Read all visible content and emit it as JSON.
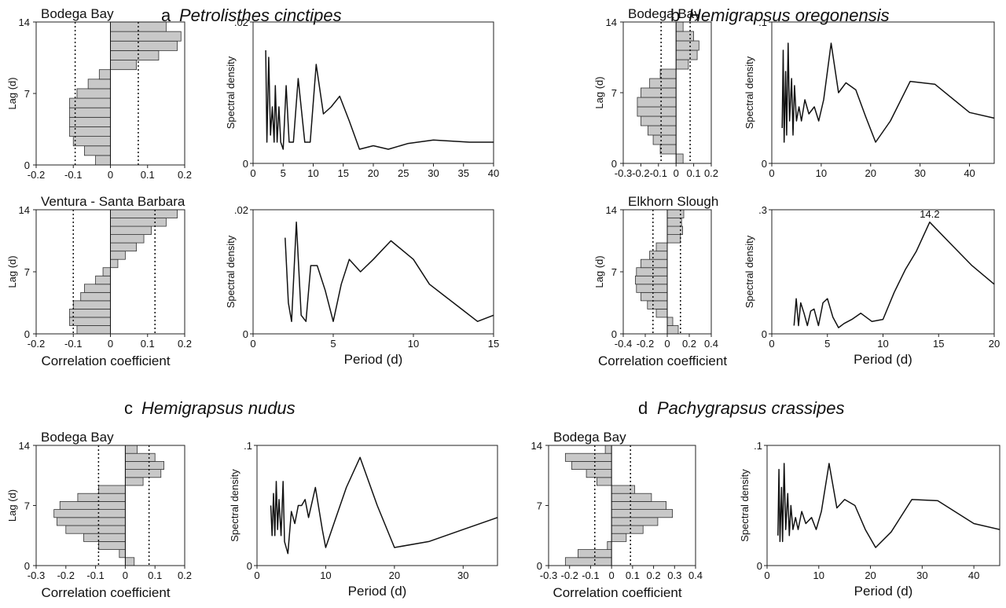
{
  "panels": [
    {
      "letter": "a",
      "species": "Petrolisthes cinctipes"
    },
    {
      "letter": "b",
      "species": "Hemigrapsus oregonensis"
    },
    {
      "letter": "c",
      "species": "Hemigrapsus nudus"
    },
    {
      "letter": "d",
      "species": "Pachygrapsus crassipes"
    }
  ],
  "chart_data": [
    {
      "type": "bar",
      "id": "a1-ccf",
      "title": "Bodega Bay",
      "orientation": "horizontal",
      "xlim": [
        -0.2,
        0.2
      ],
      "xticks": [
        -0.2,
        -0.1,
        0,
        0.1,
        0.2
      ],
      "ylim": [
        0,
        14
      ],
      "yticks": [
        0,
        7,
        14
      ],
      "ylabel": "Lag (d)",
      "xlabel": "",
      "significance": [
        -0.095,
        0.075
      ],
      "lags": [
        0,
        1,
        2,
        3,
        4,
        5,
        6,
        7,
        8,
        9,
        10,
        11,
        12,
        13,
        14
      ],
      "values": [
        -0.04,
        -0.07,
        -0.1,
        -0.11,
        -0.11,
        -0.11,
        -0.11,
        -0.09,
        -0.06,
        -0.03,
        0.07,
        0.13,
        0.18,
        0.19,
        0.15
      ]
    },
    {
      "type": "line",
      "id": "a1-psd",
      "xlim": [
        0,
        40
      ],
      "ylim": [
        0,
        0.02
      ],
      "xticks": [
        0,
        5,
        10,
        15,
        20,
        25,
        30,
        35,
        40
      ],
      "yticks": [
        0,
        0.02
      ],
      "xlabel": "",
      "ylabel": "Spectral density",
      "x": [
        2.1,
        2.3,
        2.6,
        2.9,
        3.2,
        3.5,
        3.7,
        4,
        4.3,
        4.6,
        5,
        5.5,
        6,
        6.7,
        7.5,
        8.6,
        9.5,
        10.5,
        11.7,
        13,
        14.4,
        16,
        17.7,
        20,
        22.5,
        25.7,
        30,
        36,
        40
      ],
      "values": [
        0.016,
        0.003,
        0.015,
        0.004,
        0.008,
        0.003,
        0.011,
        0.003,
        0.008,
        0.003,
        0.002,
        0.011,
        0.003,
        0.003,
        0.012,
        0.003,
        0.003,
        0.014,
        0.007,
        0.008,
        0.0095,
        0.006,
        0.002,
        0.0025,
        0.002,
        0.0028,
        0.0033,
        0.003,
        0.003
      ]
    },
    {
      "type": "bar",
      "id": "a2-ccf",
      "title": "Ventura - Santa Barbara",
      "orientation": "horizontal",
      "xlim": [
        -0.2,
        0.2
      ],
      "xticks": [
        -0.2,
        -0.1,
        0,
        0.1,
        0.2
      ],
      "ylim": [
        0,
        14
      ],
      "yticks": [
        0,
        7,
        14
      ],
      "ylabel": "Lag (d)",
      "xlabel": "Correlation coefficient",
      "significance": [
        -0.1,
        0.12
      ],
      "lags": [
        0,
        1,
        2,
        3,
        4,
        5,
        6,
        7,
        8,
        9,
        10,
        11,
        12,
        13,
        14
      ],
      "values": [
        -0.09,
        -0.11,
        -0.11,
        -0.1,
        -0.08,
        -0.07,
        -0.04,
        -0.02,
        0.02,
        0.04,
        0.07,
        0.09,
        0.11,
        0.15,
        0.18
      ]
    },
    {
      "type": "line",
      "id": "a2-psd",
      "xlim": [
        0,
        15
      ],
      "ylim": [
        0,
        0.02
      ],
      "xticks": [
        0,
        5,
        10,
        15
      ],
      "yticks": [
        0,
        0.02
      ],
      "xlabel": "Period (d)",
      "ylabel": "Spectral density",
      "x": [
        2,
        2.2,
        2.4,
        2.7,
        3,
        3.3,
        3.6,
        4,
        4.5,
        5,
        5.5,
        6,
        6.7,
        7.5,
        8.6,
        10,
        11,
        12,
        13,
        14,
        15
      ],
      "values": [
        0.0155,
        0.005,
        0.002,
        0.018,
        0.003,
        0.002,
        0.011,
        0.011,
        0.007,
        0.002,
        0.008,
        0.012,
        0.01,
        0.012,
        0.015,
        0.012,
        0.008,
        0.006,
        0.004,
        0.002,
        0.003
      ]
    },
    {
      "type": "bar",
      "id": "b1-ccf",
      "title": "Bodega Bay",
      "orientation": "horizontal",
      "xlim": [
        -0.3,
        0.2
      ],
      "xticks": [
        -0.3,
        -0.2,
        -0.1,
        0,
        0.1,
        0.2
      ],
      "ylim": [
        0,
        14
      ],
      "yticks": [
        0,
        7,
        14
      ],
      "ylabel": "Lag (d)",
      "xlabel": "",
      "significance": [
        -0.085,
        0.08
      ],
      "lags": [
        0,
        1,
        2,
        3,
        4,
        5,
        6,
        7,
        8,
        9,
        10,
        11,
        12,
        13,
        14
      ],
      "values": [
        0.04,
        -0.09,
        -0.13,
        -0.16,
        -0.2,
        -0.22,
        -0.22,
        -0.2,
        -0.15,
        -0.09,
        0.07,
        0.12,
        0.13,
        0.1,
        0.04
      ]
    },
    {
      "type": "line",
      "id": "b1-psd",
      "xlim": [
        0,
        45
      ],
      "ylim": [
        0,
        0.1
      ],
      "xticks": [
        0,
        10,
        20,
        30,
        40
      ],
      "yticks": [
        0,
        0.1
      ],
      "xlabel": "",
      "ylabel": "Spectral density",
      "x": [
        2.1,
        2.3,
        2.5,
        2.8,
        3,
        3.3,
        3.6,
        4,
        4.3,
        4.6,
        5,
        5.5,
        6,
        6.7,
        7.5,
        8.6,
        9.5,
        10.5,
        12,
        13.5,
        15,
        17,
        19,
        21,
        24,
        28,
        33,
        40,
        45
      ],
      "values": [
        0.025,
        0.08,
        0.015,
        0.065,
        0.02,
        0.085,
        0.03,
        0.06,
        0.02,
        0.055,
        0.03,
        0.04,
        0.03,
        0.045,
        0.035,
        0.04,
        0.03,
        0.045,
        0.085,
        0.05,
        0.057,
        0.052,
        0.033,
        0.015,
        0.03,
        0.058,
        0.056,
        0.036,
        0.032
      ]
    },
    {
      "type": "bar",
      "id": "b2-ccf",
      "title": "Elkhorn Slough",
      "orientation": "horizontal",
      "xlim": [
        -0.4,
        0.4
      ],
      "xticks": [
        -0.4,
        -0.2,
        0,
        0.2,
        0.4
      ],
      "ylim": [
        0,
        14
      ],
      "yticks": [
        0,
        7,
        14
      ],
      "ylabel": "Lag (d)",
      "xlabel": "Correlation coefficient",
      "significance": [
        -0.13,
        0.12
      ],
      "lags": [
        0,
        1,
        2,
        3,
        4,
        5,
        6,
        7,
        8,
        9,
        10,
        11,
        12,
        13,
        14
      ],
      "values": [
        0.1,
        0.05,
        -0.1,
        -0.18,
        -0.24,
        -0.28,
        -0.29,
        -0.28,
        -0.24,
        -0.16,
        -0.1,
        0.12,
        0.14,
        0.13,
        0.15
      ]
    },
    {
      "type": "line",
      "id": "b2-psd",
      "xlim": [
        0,
        20
      ],
      "ylim": [
        0,
        0.3
      ],
      "xticks": [
        0,
        5,
        10,
        15,
        20
      ],
      "yticks": [
        0,
        0.3
      ],
      "xlabel": "Period (d)",
      "ylabel": "Spectral density",
      "annotations": [
        {
          "x": 14.2,
          "y": 0.27,
          "text": "14.2"
        }
      ],
      "x": [
        2,
        2.2,
        2.4,
        2.6,
        2.9,
        3.2,
        3.5,
        3.8,
        4.2,
        4.6,
        5,
        5.5,
        6,
        6.5,
        7.2,
        8,
        9,
        10,
        11,
        12,
        13,
        14.2,
        16,
        18,
        20
      ],
      "values": [
        0.02,
        0.085,
        0.02,
        0.075,
        0.05,
        0.02,
        0.055,
        0.06,
        0.02,
        0.075,
        0.085,
        0.04,
        0.015,
        0.025,
        0.035,
        0.05,
        0.03,
        0.035,
        0.1,
        0.155,
        0.2,
        0.27,
        0.22,
        0.165,
        0.12
      ]
    },
    {
      "type": "bar",
      "id": "c1-ccf",
      "title": "Bodega Bay",
      "orientation": "horizontal",
      "xlim": [
        -0.3,
        0.2
      ],
      "xticks": [
        -0.3,
        -0.2,
        -0.1,
        0,
        0.1,
        0.2
      ],
      "ylim": [
        0,
        14
      ],
      "yticks": [
        0,
        7,
        14
      ],
      "ylabel": "Lag (d)",
      "xlabel": "Correlation coefficient",
      "significance": [
        -0.09,
        0.08
      ],
      "lags": [
        0,
        1,
        2,
        3,
        4,
        5,
        6,
        7,
        8,
        9,
        10,
        11,
        12,
        13,
        14
      ],
      "values": [
        0.03,
        -0.02,
        -0.09,
        -0.14,
        -0.2,
        -0.23,
        -0.24,
        -0.22,
        -0.16,
        -0.09,
        0.06,
        0.12,
        0.13,
        0.1,
        0.04
      ]
    },
    {
      "type": "line",
      "id": "c1-psd",
      "xlim": [
        0,
        35
      ],
      "ylim": [
        0,
        0.1
      ],
      "xticks": [
        0,
        10,
        20,
        30
      ],
      "yticks": [
        0,
        0.1
      ],
      "xlabel": "Period (d)",
      "ylabel": "Spectral density",
      "x": [
        2,
        2.2,
        2.4,
        2.6,
        2.8,
        3,
        3.2,
        3.5,
        3.8,
        4,
        4.5,
        5,
        5.5,
        6,
        6.5,
        7,
        7.5,
        8.5,
        9.5,
        10,
        11.5,
        13,
        15,
        17.5,
        20,
        25,
        30,
        35
      ],
      "values": [
        0.05,
        0.025,
        0.06,
        0.025,
        0.07,
        0.03,
        0.055,
        0.025,
        0.07,
        0.02,
        0.01,
        0.045,
        0.035,
        0.05,
        0.05,
        0.055,
        0.04,
        0.065,
        0.03,
        0.015,
        0.04,
        0.065,
        0.09,
        0.05,
        0.015,
        0.02,
        0.03,
        0.04
      ]
    },
    {
      "type": "bar",
      "id": "d1-ccf",
      "title": "Bodega Bay",
      "orientation": "horizontal",
      "xlim": [
        -0.3,
        0.4
      ],
      "xticks": [
        -0.3,
        -0.2,
        -0.1,
        0,
        0.1,
        0.2,
        0.3,
        0.4
      ],
      "ylim": [
        0,
        14
      ],
      "yticks": [
        0,
        7,
        14
      ],
      "ylabel": "",
      "xlabel": "Correlation coefficient",
      "significance": [
        -0.08,
        0.09
      ],
      "lags": [
        0,
        1,
        2,
        3,
        4,
        5,
        6,
        7,
        8,
        9,
        10,
        11,
        12,
        13,
        14
      ],
      "values": [
        -0.22,
        -0.16,
        -0.02,
        0.07,
        0.15,
        0.22,
        0.29,
        0.26,
        0.19,
        0.11,
        -0.07,
        -0.12,
        -0.19,
        -0.22,
        -0.03
      ]
    },
    {
      "type": "line",
      "id": "d1-psd",
      "xlim": [
        0,
        45
      ],
      "ylim": [
        0,
        0.1
      ],
      "xticks": [
        0,
        10,
        20,
        30,
        40
      ],
      "yticks": [
        0,
        0.1
      ],
      "xlabel": "Period (d)",
      "ylabel": "Spectral density",
      "x": [
        2.1,
        2.3,
        2.5,
        2.8,
        3,
        3.3,
        3.6,
        4,
        4.3,
        4.6,
        5,
        5.5,
        6,
        6.7,
        7.5,
        8.6,
        9.5,
        10.5,
        12,
        13.5,
        15,
        17,
        19,
        21,
        24,
        28,
        33,
        40,
        45
      ],
      "values": [
        0.025,
        0.08,
        0.02,
        0.065,
        0.02,
        0.085,
        0.03,
        0.06,
        0.025,
        0.05,
        0.03,
        0.04,
        0.03,
        0.045,
        0.035,
        0.04,
        0.03,
        0.045,
        0.085,
        0.048,
        0.055,
        0.05,
        0.03,
        0.015,
        0.028,
        0.055,
        0.054,
        0.035,
        0.03
      ]
    }
  ]
}
